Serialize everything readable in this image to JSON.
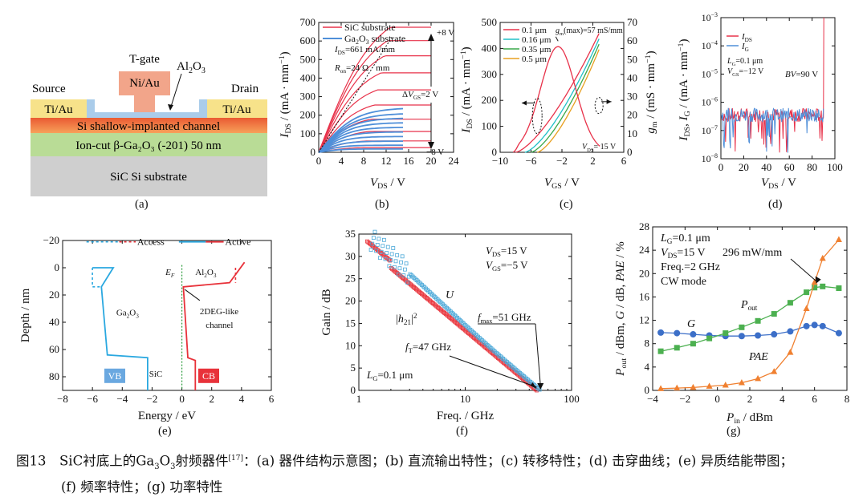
{
  "figure": {
    "sublabels": [
      "(a)",
      "(b)",
      "(c)",
      "(d)",
      "(e)",
      "(f)",
      "(g)"
    ],
    "caption": {
      "lead": "图13　SiC衬底上的Ga",
      "sub3": "3",
      "mid": "O",
      "tail1": "射频器件",
      "ref": "[17]",
      "tail2": "：(a) 器件结构示意图；(b) 直流输出特性；(c) 转移特性；(d) 击穿曲线；(e) 异质结能带图；",
      "line2": "(f) 频率特性；(g) 功率特性"
    }
  },
  "panel_a": {
    "labels": {
      "tgate": "T-gate",
      "niau": "Ni/Au",
      "al2o3": "Al",
      "al2o3_sub": "2",
      "al2o3_o": "O",
      "al2o3_sub2": "3",
      "source": "Source",
      "drain": "Drain",
      "tiau_left": "Ti/Au",
      "tiau_right": "Ti/Au",
      "channel": "Si shallow-implanted channel",
      "gao_layer": "Ion-cut β-Ga₂O₃ (-201) 50 nm",
      "substrate": "SiC Si substrate"
    },
    "colors": {
      "niau": "#f2a58a",
      "oxide": "#aaccea",
      "tiau": "#f7e28a",
      "channel_top": "#ea5a32",
      "channel_bot": "#f7a15a",
      "gao": "#b9dc96",
      "sic": "#cfcfcf"
    }
  },
  "chart_data": [
    {
      "id": "b",
      "type": "line",
      "xlabel": "V_DS / V",
      "ylabel": "I_DS / (mA · mm⁻¹)",
      "xlim": [
        0,
        24
      ],
      "ylim": [
        0,
        700
      ],
      "xticks": [
        0,
        4,
        8,
        12,
        16,
        20,
        24
      ],
      "yticks": [
        0,
        100,
        200,
        300,
        400,
        500,
        600,
        700
      ],
      "legend": [
        "SiC substrate",
        "Ga₂O₃ substrate"
      ],
      "annotations": [
        "I_DS=661 mA/mm",
        "R_on=24 Ω · mm",
        "+8 V",
        "ΔV_GS=2 V",
        "−8 V"
      ],
      "series_sic_isat": [
        661,
        590,
        510,
        420,
        330,
        250,
        175,
        110,
        60,
        25
      ],
      "series_gao_isat": [
        240,
        210,
        185,
        160,
        135,
        110,
        85,
        60,
        38,
        18
      ],
      "colors": {
        "sic": "#e8324a",
        "gao": "#4f8fd9"
      }
    },
    {
      "id": "c",
      "type": "line",
      "xlabel": "V_GS / V",
      "ylabel": "I_DS / (mA · mm⁻¹)",
      "y2label": "g_m / (mS · mm⁻¹)",
      "xlim": [
        -10,
        6
      ],
      "ylim": [
        0,
        500
      ],
      "y2lim": [
        0,
        70
      ],
      "xticks": [
        -10,
        -6,
        -2,
        2,
        6
      ],
      "yticks": [
        0,
        100,
        200,
        300,
        400,
        500
      ],
      "y2ticks": [
        0,
        10,
        20,
        30,
        40,
        50,
        60,
        70
      ],
      "legend": [
        "0.1 μm",
        "0.16 μm",
        "0.35 μm",
        "0.5 μm"
      ],
      "annotations": [
        "g_m(max)=57 mS/mm",
        "V_DS= 15 V"
      ],
      "vth": [
        -8,
        -6.8,
        -6,
        -5.2
      ],
      "imax": [
        470,
        450,
        430,
        410
      ],
      "gm_peak": 57,
      "colors": [
        "#e8324a",
        "#20c0c8",
        "#3aa84a",
        "#e8a020"
      ]
    },
    {
      "id": "d",
      "type": "line",
      "xlabel": "V_DS / V",
      "ylabel": "I_DS, I_G / (mA · mm⁻¹)",
      "xlim": [
        0,
        100
      ],
      "ylim_log": [
        -8,
        -3
      ],
      "xticks": [
        0,
        20,
        40,
        60,
        80,
        100
      ],
      "yticks_exp": [
        "-8",
        "-7",
        "-6",
        "-5",
        "-4",
        "-3"
      ],
      "legend": [
        "I_DS",
        "I_G"
      ],
      "annotations": [
        "L_G=0.1 μm",
        "V_GS=−12 V",
        "BV=90 V"
      ],
      "breakdown": 90,
      "colors": {
        "ids": "#e8324a",
        "ig": "#4f8fd9"
      }
    },
    {
      "id": "e",
      "type": "line",
      "xlabel": "Energy / eV",
      "ylabel": "Depth / nm",
      "xlim": [
        -8,
        6
      ],
      "ylim": [
        -20,
        90
      ],
      "xticks": [
        -8,
        -6,
        -4,
        -2,
        0,
        2,
        4,
        6
      ],
      "yticks": [
        -20,
        0,
        20,
        40,
        60,
        80
      ],
      "legend": [
        "Access",
        "Active"
      ],
      "annotations": [
        "E_F",
        "Al₂O₃",
        "Ga₂O₃",
        "2DEG-like channel",
        "SiC",
        "VB",
        "CB"
      ],
      "colors": {
        "vb": "#2aa8e0",
        "cb": "#e8323a",
        "ef": "#2a9a3a"
      }
    },
    {
      "id": "f",
      "type": "scatter",
      "xlabel": "Freq. / GHz",
      "ylabel": "Gain / dB",
      "xlim_log": [
        1,
        100
      ],
      "ylim": [
        0,
        35
      ],
      "xticks": [
        1,
        10,
        100
      ],
      "yticks": [
        0,
        5,
        10,
        15,
        20,
        25,
        30,
        35
      ],
      "legend": [
        "U",
        "|h21|²"
      ],
      "annotations": [
        "V_DS=15 V",
        "V_GS=−5 V",
        "f_max=51 GHz",
        "f_T=47 GHz",
        "L_G=0.1 μm"
      ],
      "ft": 47,
      "fmax": 51,
      "colors": {
        "u": "#4aa8d8",
        "h21": "#e8323a"
      }
    },
    {
      "id": "g",
      "type": "line",
      "xlabel": "P_in / dBm",
      "ylabel": "P_out / dBm, G / dB, PAE / %",
      "xlim": [
        -4,
        8
      ],
      "ylim": [
        0,
        28
      ],
      "xticks": [
        -4,
        -2,
        0,
        2,
        4,
        6,
        8
      ],
      "yticks": [
        0,
        4,
        8,
        12,
        16,
        20,
        24,
        28
      ],
      "legend": [
        "G",
        "P_out",
        "PAE"
      ],
      "annotations": [
        "L_G=0.1 μm",
        "V_DS=15 V",
        "296 mW/mm",
        "Freq.=2 GHz",
        "CW mode"
      ],
      "pin": [
        -3.5,
        -2.5,
        -1.5,
        -0.5,
        0.5,
        1.5,
        2.5,
        3.5,
        4.5,
        5.5,
        6.0,
        6.5,
        7.5
      ],
      "gain": [
        9.9,
        9.8,
        9.6,
        9.4,
        9.3,
        9.3,
        9.4,
        9.6,
        10.1,
        11.0,
        11.2,
        11.0,
        9.8
      ],
      "pout": [
        6.7,
        7.3,
        8.0,
        8.9,
        9.8,
        10.8,
        11.9,
        13.1,
        15.0,
        16.8,
        17.6,
        17.8,
        17.5
      ],
      "pae": [
        0.3,
        0.4,
        0.5,
        0.7,
        0.9,
        1.3,
        2.0,
        3.2,
        6.5,
        14.0,
        18.5,
        22.6,
        25.8
      ],
      "colors": {
        "gain": "#3c6fc8",
        "pout": "#4cb050",
        "pae": "#f08030"
      }
    }
  ]
}
